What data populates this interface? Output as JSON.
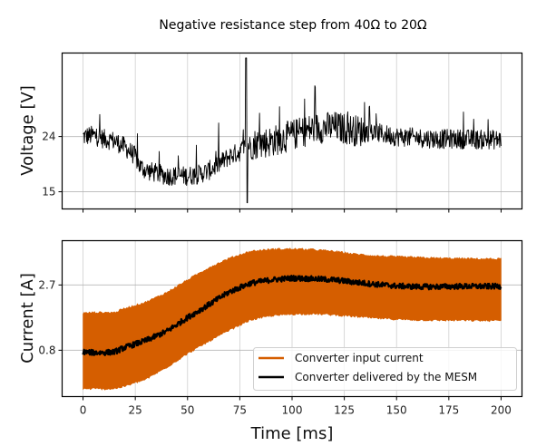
{
  "chart_data": [
    {
      "type": "line",
      "id": "voltage",
      "title": "Negative resistance step from 40Ω to 20Ω",
      "xlabel": "",
      "ylabel": "Voltage [V]",
      "xlim": [
        -10,
        210
      ],
      "ylim": [
        12.2,
        37.6
      ],
      "xticks": [
        0,
        25,
        50,
        75,
        100,
        125,
        150,
        175,
        200
      ],
      "xtick_labels_visible": false,
      "yticks": [
        15,
        24
      ],
      "ytick_labels": [
        "15",
        "24"
      ],
      "grid": true,
      "series": [
        {
          "name": "Voltage",
          "color": "#000000",
          "trend_x": [
            0,
            5,
            10,
            15,
            20,
            25,
            27,
            30,
            40,
            50,
            55,
            60,
            65,
            70,
            75,
            77,
            80,
            90,
            100,
            110,
            120,
            130,
            140,
            150,
            160,
            170,
            180,
            190,
            200
          ],
          "trend_y": [
            24.0,
            24.2,
            23.6,
            23.3,
            22.3,
            20.8,
            19.2,
            18.5,
            17.6,
            17.6,
            17.8,
            18.4,
            19.5,
            20.8,
            21.5,
            22.2,
            22.7,
            23.2,
            24.2,
            25.3,
            25.6,
            25.0,
            24.6,
            24.0,
            23.8,
            23.6,
            23.6,
            23.5,
            23.5
          ],
          "noise_amplitude_v": 1.6,
          "spike": {
            "t_ms": 78,
            "max_v": 36.8,
            "min_v": 13.2
          },
          "peak_outliers_v": 32.5
        }
      ]
    },
    {
      "type": "area",
      "id": "current",
      "xlabel": "Time [ms]",
      "ylabel": "Current [A]",
      "xlim": [
        -10,
        210
      ],
      "ylim": [
        -0.55,
        3.99
      ],
      "xticks": [
        0,
        25,
        50,
        75,
        100,
        125,
        150,
        175,
        200
      ],
      "xtick_labels": [
        "0",
        "25",
        "50",
        "75",
        "100",
        "125",
        "150",
        "175",
        "200"
      ],
      "yticks": [
        0.8,
        2.7
      ],
      "ytick_labels": [
        "0.8",
        "2.7"
      ],
      "grid": true,
      "legend": {
        "placement": "lower-right",
        "entries": [
          {
            "label": "Converter input current",
            "color": "#d55e00"
          },
          {
            "label": "Converter delivered by the MESM",
            "color": "#000000"
          }
        ]
      },
      "series": [
        {
          "name": "Converter input current",
          "color": "#d55e00",
          "x": [
            0,
            5,
            10,
            15,
            20,
            30,
            40,
            50,
            60,
            70,
            80,
            90,
            100,
            110,
            120,
            130,
            140,
            150,
            160,
            170,
            180,
            190,
            200
          ],
          "upper": [
            1.88,
            1.9,
            1.9,
            1.9,
            2.02,
            2.2,
            2.48,
            2.85,
            3.2,
            3.48,
            3.68,
            3.74,
            3.75,
            3.73,
            3.68,
            3.6,
            3.55,
            3.52,
            3.5,
            3.48,
            3.47,
            3.46,
            3.46
          ],
          "lower": [
            -0.33,
            -0.32,
            -0.33,
            -0.32,
            -0.25,
            -0.05,
            0.3,
            0.7,
            1.05,
            1.38,
            1.68,
            1.8,
            1.85,
            1.86,
            1.83,
            1.78,
            1.73,
            1.7,
            1.68,
            1.67,
            1.67,
            1.66,
            1.66
          ]
        },
        {
          "name": "Converter delivered by the MESM",
          "color": "#000000",
          "x": [
            0,
            5,
            10,
            15,
            20,
            30,
            40,
            50,
            60,
            70,
            80,
            90,
            100,
            110,
            120,
            130,
            140,
            150,
            160,
            170,
            180,
            190,
            200
          ],
          "y": [
            0.75,
            0.73,
            0.73,
            0.75,
            0.88,
            1.08,
            1.35,
            1.75,
            2.12,
            2.5,
            2.75,
            2.85,
            2.9,
            2.88,
            2.85,
            2.78,
            2.72,
            2.67,
            2.65,
            2.65,
            2.66,
            2.66,
            2.66
          ],
          "noise_amplitude_a": 0.08
        }
      ]
    }
  ]
}
